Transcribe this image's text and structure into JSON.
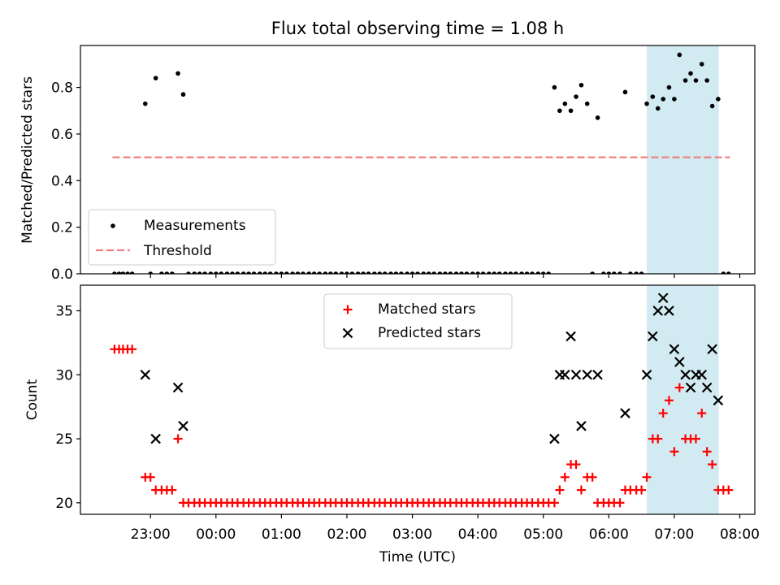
{
  "chart_data": [
    {
      "type": "scatter",
      "title": "Flux total observing time = 1.08 h",
      "ylabel": "Matched/Predicted stars",
      "xlabel": "",
      "ylim": [
        0,
        0.98
      ],
      "yticks": [
        "0.0",
        "0.2",
        "0.4",
        "0.6",
        "0.8"
      ],
      "ytick_values": [
        0,
        0.2,
        0.4,
        0.6,
        0.8
      ],
      "xlim_hours": [
        21.93,
        32.23
      ],
      "highlight_span": {
        "x0": 30.58,
        "x1": 31.68,
        "color": "#add8e6"
      },
      "threshold": {
        "label": "Threshold",
        "value": 0.5,
        "x0": 22.42,
        "x1": 31.85,
        "color": "#f08080"
      },
      "legend": {
        "position": "lower-left",
        "entries": [
          "Measurements",
          "Threshold"
        ]
      },
      "series": [
        {
          "name": "Measurements",
          "color": "#000000",
          "points": [
            [
              22.45,
              0
            ],
            [
              22.52,
              0
            ],
            [
              22.58,
              0
            ],
            [
              22.65,
              0
            ],
            [
              22.72,
              0
            ],
            [
              22.92,
              0.73
            ],
            [
              23.0,
              0
            ],
            [
              23.08,
              0.84
            ],
            [
              23.17,
              0
            ],
            [
              23.25,
              0
            ],
            [
              23.33,
              0
            ],
            [
              23.42,
              0.86
            ],
            [
              23.5,
              0.77
            ],
            [
              23.58,
              0
            ],
            [
              23.67,
              0
            ],
            [
              23.75,
              0
            ],
            [
              23.83,
              0
            ],
            [
              23.92,
              0
            ],
            [
              24.0,
              0
            ],
            [
              24.08,
              0
            ],
            [
              24.17,
              0
            ],
            [
              24.25,
              0
            ],
            [
              24.33,
              0
            ],
            [
              24.42,
              0
            ],
            [
              24.5,
              0
            ],
            [
              24.58,
              0
            ],
            [
              24.67,
              0
            ],
            [
              24.75,
              0
            ],
            [
              24.83,
              0
            ],
            [
              24.92,
              0
            ],
            [
              25.0,
              0
            ],
            [
              25.08,
              0
            ],
            [
              25.17,
              0
            ],
            [
              25.25,
              0
            ],
            [
              25.33,
              0
            ],
            [
              25.42,
              0
            ],
            [
              25.5,
              0
            ],
            [
              25.58,
              0
            ],
            [
              25.67,
              0
            ],
            [
              25.75,
              0
            ],
            [
              25.83,
              0
            ],
            [
              25.92,
              0
            ],
            [
              26.0,
              0
            ],
            [
              26.08,
              0
            ],
            [
              26.17,
              0
            ],
            [
              26.25,
              0
            ],
            [
              26.33,
              0
            ],
            [
              26.42,
              0
            ],
            [
              26.5,
              0
            ],
            [
              26.58,
              0
            ],
            [
              26.67,
              0
            ],
            [
              26.75,
              0
            ],
            [
              26.83,
              0
            ],
            [
              26.92,
              0
            ],
            [
              27.0,
              0
            ],
            [
              27.08,
              0
            ],
            [
              27.17,
              0
            ],
            [
              27.25,
              0
            ],
            [
              27.33,
              0
            ],
            [
              27.42,
              0
            ],
            [
              27.5,
              0
            ],
            [
              27.58,
              0
            ],
            [
              27.67,
              0
            ],
            [
              27.75,
              0
            ],
            [
              27.83,
              0
            ],
            [
              27.92,
              0
            ],
            [
              28.0,
              0
            ],
            [
              28.08,
              0
            ],
            [
              28.17,
              0
            ],
            [
              28.25,
              0
            ],
            [
              28.33,
              0
            ],
            [
              28.42,
              0
            ],
            [
              28.5,
              0
            ],
            [
              28.58,
              0
            ],
            [
              28.67,
              0
            ],
            [
              28.75,
              0
            ],
            [
              28.83,
              0
            ],
            [
              28.92,
              0
            ],
            [
              29.0,
              0
            ],
            [
              29.08,
              0
            ],
            [
              29.17,
              0.8
            ],
            [
              29.25,
              0.7
            ],
            [
              29.33,
              0.73
            ],
            [
              29.42,
              0.7
            ],
            [
              29.5,
              0.76
            ],
            [
              29.58,
              0.81
            ],
            [
              29.67,
              0.73
            ],
            [
              29.75,
              0
            ],
            [
              29.83,
              0.67
            ],
            [
              29.92,
              0
            ],
            [
              30.0,
              0
            ],
            [
              30.08,
              0
            ],
            [
              30.17,
              0
            ],
            [
              30.25,
              0.78
            ],
            [
              30.33,
              0
            ],
            [
              30.42,
              0
            ],
            [
              30.5,
              0
            ],
            [
              30.58,
              0.73
            ],
            [
              30.67,
              0.76
            ],
            [
              30.75,
              0.71
            ],
            [
              30.83,
              0.75
            ],
            [
              30.92,
              0.8
            ],
            [
              31.0,
              0.75
            ],
            [
              31.08,
              0.94
            ],
            [
              31.17,
              0.83
            ],
            [
              31.25,
              0.86
            ],
            [
              31.33,
              0.83
            ],
            [
              31.42,
              0.9
            ],
            [
              31.5,
              0.83
            ],
            [
              31.58,
              0.72
            ],
            [
              31.67,
              0.75
            ],
            [
              31.75,
              0
            ],
            [
              31.83,
              0
            ]
          ]
        }
      ]
    },
    {
      "type": "scatter",
      "title": "",
      "xlabel": "Time (UTC)",
      "ylabel": "Count",
      "ylim": [
        19.1,
        37.0
      ],
      "yticks": [
        "20",
        "25",
        "30",
        "35"
      ],
      "ytick_values": [
        20,
        25,
        30,
        35
      ],
      "xticks": [
        "23:00",
        "00:00",
        "01:00",
        "02:00",
        "03:00",
        "04:00",
        "05:00",
        "06:00",
        "07:00",
        "08:00"
      ],
      "xtick_values": [
        23,
        24,
        25,
        26,
        27,
        28,
        29,
        30,
        31,
        32
      ],
      "xlim_hours": [
        21.93,
        32.23
      ],
      "highlight_span": {
        "x0": 30.58,
        "x1": 31.68,
        "color": "#add8e6"
      },
      "legend": {
        "position": "top-center",
        "entries": [
          "Matched stars",
          "Predicted stars"
        ]
      },
      "series": [
        {
          "name": "Matched stars",
          "marker": "plus",
          "color": "#ff0000",
          "points": [
            [
              22.45,
              32
            ],
            [
              22.52,
              32
            ],
            [
              22.58,
              32
            ],
            [
              22.65,
              32
            ],
            [
              22.72,
              32
            ],
            [
              22.92,
              22
            ],
            [
              23.0,
              22
            ],
            [
              23.08,
              21
            ],
            [
              23.17,
              21
            ],
            [
              23.25,
              21
            ],
            [
              23.33,
              21
            ],
            [
              23.42,
              25
            ],
            [
              23.5,
              20
            ],
            [
              23.58,
              20
            ],
            [
              23.67,
              20
            ],
            [
              23.75,
              20
            ],
            [
              23.83,
              20
            ],
            [
              23.92,
              20
            ],
            [
              24.0,
              20
            ],
            [
              24.08,
              20
            ],
            [
              24.17,
              20
            ],
            [
              24.25,
              20
            ],
            [
              24.33,
              20
            ],
            [
              24.42,
              20
            ],
            [
              24.5,
              20
            ],
            [
              24.58,
              20
            ],
            [
              24.67,
              20
            ],
            [
              24.75,
              20
            ],
            [
              24.83,
              20
            ],
            [
              24.92,
              20
            ],
            [
              25.0,
              20
            ],
            [
              25.08,
              20
            ],
            [
              25.17,
              20
            ],
            [
              25.25,
              20
            ],
            [
              25.33,
              20
            ],
            [
              25.42,
              20
            ],
            [
              25.5,
              20
            ],
            [
              25.58,
              20
            ],
            [
              25.67,
              20
            ],
            [
              25.75,
              20
            ],
            [
              25.83,
              20
            ],
            [
              25.92,
              20
            ],
            [
              26.0,
              20
            ],
            [
              26.08,
              20
            ],
            [
              26.17,
              20
            ],
            [
              26.25,
              20
            ],
            [
              26.33,
              20
            ],
            [
              26.42,
              20
            ],
            [
              26.5,
              20
            ],
            [
              26.58,
              20
            ],
            [
              26.67,
              20
            ],
            [
              26.75,
              20
            ],
            [
              26.83,
              20
            ],
            [
              26.92,
              20
            ],
            [
              27.0,
              20
            ],
            [
              27.08,
              20
            ],
            [
              27.17,
              20
            ],
            [
              27.25,
              20
            ],
            [
              27.33,
              20
            ],
            [
              27.42,
              20
            ],
            [
              27.5,
              20
            ],
            [
              27.58,
              20
            ],
            [
              27.67,
              20
            ],
            [
              27.75,
              20
            ],
            [
              27.83,
              20
            ],
            [
              27.92,
              20
            ],
            [
              28.0,
              20
            ],
            [
              28.08,
              20
            ],
            [
              28.17,
              20
            ],
            [
              28.25,
              20
            ],
            [
              28.33,
              20
            ],
            [
              28.42,
              20
            ],
            [
              28.5,
              20
            ],
            [
              28.58,
              20
            ],
            [
              28.67,
              20
            ],
            [
              28.75,
              20
            ],
            [
              28.83,
              20
            ],
            [
              28.92,
              20
            ],
            [
              29.0,
              20
            ],
            [
              29.08,
              20
            ],
            [
              29.17,
              20
            ],
            [
              29.25,
              21
            ],
            [
              29.33,
              22
            ],
            [
              29.42,
              23
            ],
            [
              29.5,
              23
            ],
            [
              29.58,
              21
            ],
            [
              29.67,
              22
            ],
            [
              29.75,
              22
            ],
            [
              29.83,
              20
            ],
            [
              29.92,
              20
            ],
            [
              30.0,
              20
            ],
            [
              30.08,
              20
            ],
            [
              30.17,
              20
            ],
            [
              30.25,
              21
            ],
            [
              30.33,
              21
            ],
            [
              30.42,
              21
            ],
            [
              30.5,
              21
            ],
            [
              30.58,
              22
            ],
            [
              30.67,
              25
            ],
            [
              30.75,
              25
            ],
            [
              30.83,
              27
            ],
            [
              30.92,
              28
            ],
            [
              31.0,
              24
            ],
            [
              31.08,
              29
            ],
            [
              31.17,
              25
            ],
            [
              31.25,
              25
            ],
            [
              31.33,
              25
            ],
            [
              31.42,
              27
            ],
            [
              31.5,
              24
            ],
            [
              31.58,
              23
            ],
            [
              31.67,
              21
            ],
            [
              31.75,
              21
            ],
            [
              31.83,
              21
            ]
          ]
        },
        {
          "name": "Predicted stars",
          "marker": "x",
          "color": "#000000",
          "points": [
            [
              22.92,
              30
            ],
            [
              23.08,
              25
            ],
            [
              23.42,
              29
            ],
            [
              23.5,
              26
            ],
            [
              29.17,
              25
            ],
            [
              29.25,
              30
            ],
            [
              29.33,
              30
            ],
            [
              29.42,
              33
            ],
            [
              29.5,
              30
            ],
            [
              29.58,
              26
            ],
            [
              29.67,
              30
            ],
            [
              29.83,
              30
            ],
            [
              30.25,
              27
            ],
            [
              30.58,
              30
            ],
            [
              30.67,
              33
            ],
            [
              30.75,
              35
            ],
            [
              30.83,
              36
            ],
            [
              30.92,
              35
            ],
            [
              31.0,
              32
            ],
            [
              31.08,
              31
            ],
            [
              31.17,
              30
            ],
            [
              31.25,
              29
            ],
            [
              31.33,
              30
            ],
            [
              31.42,
              30
            ],
            [
              31.5,
              29
            ],
            [
              31.58,
              32
            ],
            [
              31.67,
              28
            ]
          ]
        }
      ]
    }
  ]
}
